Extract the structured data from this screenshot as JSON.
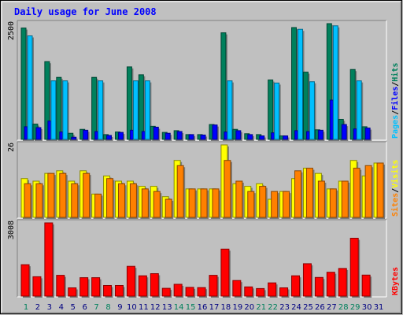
{
  "title": "Daily usage for June 2008",
  "colors": {
    "background": "#c0c0c0",
    "frame_dark": "#808080",
    "title": "#0000ff",
    "hits": "#00805c",
    "files": "#0000ff",
    "pages": "#00c0ff",
    "visits": "#ffff00",
    "sites": "#ff8000",
    "kbytes": "#ff0000",
    "weekend_label": "#00805c",
    "weekday_label": "#000080"
  },
  "chart_data": [
    {
      "type": "bar",
      "panel": "hits-files-pages",
      "ymax_label": "2500",
      "ylim": [
        0,
        2650
      ],
      "categories": [
        "1",
        "2",
        "3",
        "4",
        "5",
        "6",
        "7",
        "8",
        "9",
        "10",
        "11",
        "12",
        "13",
        "14",
        "15",
        "16",
        "17",
        "18",
        "19",
        "20",
        "21",
        "22",
        "23",
        "24",
        "25",
        "26",
        "27",
        "28",
        "29",
        "30",
        "31"
      ],
      "legend": [
        {
          "text": "Pages",
          "color": "#00c0ff"
        },
        {
          "text": "/",
          "color": "#000000"
        },
        {
          "text": "Files",
          "color": "#0000ff"
        },
        {
          "text": "/",
          "color": "#000000"
        },
        {
          "text": "Hits",
          "color": "#00805c"
        }
      ],
      "series": [
        {
          "name": "Hits",
          "color": "#00805c",
          "values": [
            2550,
            350,
            1780,
            1420,
            140,
            230,
            1420,
            110,
            170,
            1660,
            1480,
            300,
            160,
            200,
            110,
            110,
            340,
            2440,
            230,
            130,
            110,
            1360,
            80,
            2560,
            1540,
            220,
            2680,
            460,
            1600,
            290,
            0
          ]
        },
        {
          "name": "Files",
          "color": "#0000ff",
          "values": [
            290,
            270,
            420,
            170,
            50,
            210,
            180,
            90,
            160,
            210,
            180,
            280,
            140,
            180,
            110,
            100,
            330,
            170,
            200,
            110,
            80,
            150,
            80,
            200,
            180,
            210,
            900,
            340,
            240,
            260,
            0
          ]
        },
        {
          "name": "Pages",
          "color": "#00c0ff",
          "values": [
            2370,
            0,
            1340,
            1340,
            0,
            0,
            1340,
            0,
            0,
            1340,
            1340,
            0,
            0,
            0,
            0,
            0,
            0,
            1340,
            0,
            0,
            0,
            1290,
            0,
            2520,
            1320,
            0,
            2600,
            0,
            1340,
            0,
            0
          ]
        }
      ]
    },
    {
      "type": "bar",
      "panel": "visits-sites",
      "ymax_label": "26",
      "ylim": [
        0,
        28
      ],
      "legend": [
        {
          "text": "Sites",
          "color": "#ff8000"
        },
        {
          "text": "/",
          "color": "#000000"
        },
        {
          "text": "Visits",
          "color": "#ffff00"
        }
      ],
      "series": [
        {
          "name": "Visits",
          "color": "#ffff00",
          "values": [
            15,
            14,
            17,
            18,
            14,
            18,
            9,
            16,
            14,
            14,
            12,
            12,
            8,
            22,
            11,
            11,
            11,
            28,
            13,
            12,
            13,
            7,
            10,
            15,
            19,
            17,
            11,
            14,
            22,
            16,
            21
          ]
        },
        {
          "name": "Sites",
          "color": "#ff8000",
          "values": [
            13,
            13,
            17,
            17,
            13,
            17,
            9,
            15,
            13,
            13,
            11,
            10,
            7,
            20,
            11,
            11,
            11,
            22,
            14,
            10,
            12,
            10,
            10,
            18,
            19,
            14,
            11,
            14,
            19,
            20,
            21
          ]
        }
      ]
    },
    {
      "type": "bar",
      "panel": "kbytes",
      "ymax_label": "3008",
      "ylim": [
        0,
        3100
      ],
      "legend": [
        {
          "text": "KBytes",
          "color": "#ff0000"
        }
      ],
      "series": [
        {
          "name": "KBytes",
          "color": "#ff0000",
          "values": [
            1330,
            820,
            3100,
            880,
            350,
            780,
            780,
            450,
            450,
            1260,
            860,
            950,
            330,
            500,
            370,
            360,
            880,
            1990,
            660,
            390,
            320,
            560,
            350,
            860,
            1370,
            790,
            1010,
            1170,
            2450,
            890,
            0
          ]
        }
      ]
    }
  ]
}
